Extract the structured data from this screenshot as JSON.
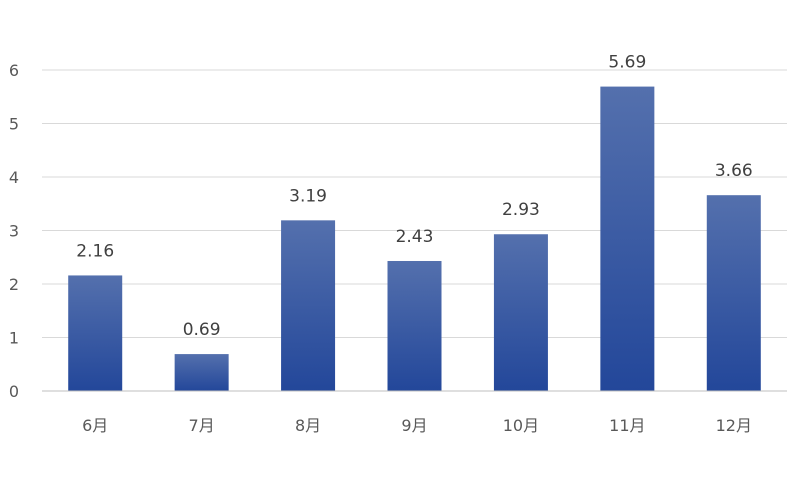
{
  "chart_data": {
    "type": "bar",
    "categories": [
      "6月",
      "7月",
      "8月",
      "9月",
      "10月",
      "11月",
      "12月"
    ],
    "values": [
      2.16,
      0.69,
      3.19,
      2.43,
      2.93,
      5.69,
      3.66
    ],
    "data_labels": [
      "2.16",
      "0.69",
      "3.19",
      "2.43",
      "2.93",
      "5.69",
      "3.66"
    ],
    "y_ticks": [
      0,
      1,
      2,
      3,
      4,
      5,
      6
    ],
    "ylim": [
      0,
      6
    ],
    "grid": true,
    "legend": "none",
    "title": "",
    "xlabel": "",
    "ylabel": "",
    "colors": {
      "bar_top": "#5470ad",
      "bar_bottom": "#23479a",
      "gridline": "#d9d9d9",
      "axis": "#bfbfbf",
      "tick_text": "#595959",
      "label_text": "#404040"
    }
  }
}
